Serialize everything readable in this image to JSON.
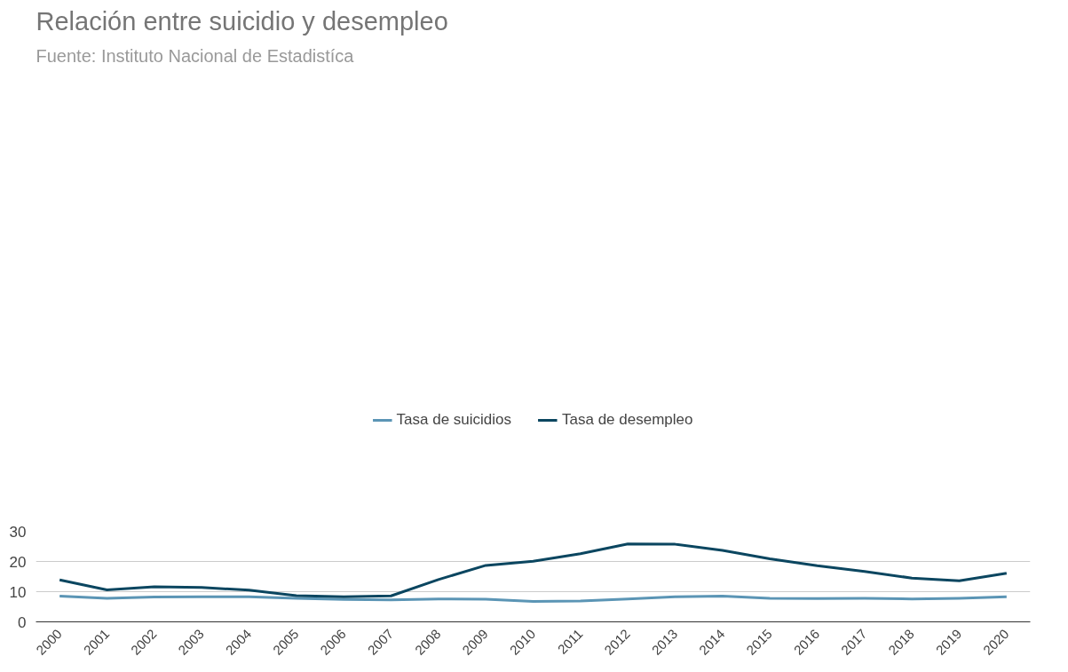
{
  "chart_data": {
    "type": "line",
    "title": "Relación entre suicidio y desempleo",
    "subtitle": "Fuente: Instituto Nacional de Estadistíca",
    "categories": [
      "2000",
      "2001",
      "2002",
      "2003",
      "2004",
      "2005",
      "2006",
      "2007",
      "2008",
      "2009",
      "2010",
      "2011",
      "2012",
      "2013",
      "2014",
      "2015",
      "2016",
      "2017",
      "2018",
      "2019",
      "2020"
    ],
    "series": [
      {
        "name": "Tasa de suicidios",
        "color": "#5b95b5",
        "values": [
          8.5,
          7.8,
          8.2,
          8.3,
          8.3,
          7.8,
          7.4,
          7.3,
          7.6,
          7.5,
          6.8,
          6.9,
          7.6,
          8.3,
          8.5,
          7.8,
          7.7,
          7.8,
          7.6,
          7.8,
          8.3
        ]
      },
      {
        "name": "Tasa de desempleo",
        "color": "#0b4660",
        "values": [
          13.9,
          10.6,
          11.6,
          11.4,
          10.5,
          8.7,
          8.3,
          8.6,
          14.0,
          18.7,
          20.1,
          22.6,
          25.8,
          25.7,
          23.7,
          20.9,
          18.6,
          16.7,
          14.5,
          13.6,
          16.1
        ]
      }
    ],
    "ylim": [
      0,
      30
    ],
    "yticks": [
      0,
      10,
      20,
      30
    ],
    "grid": "y",
    "legend": "top",
    "marker": "none",
    "line_style": "solid"
  }
}
